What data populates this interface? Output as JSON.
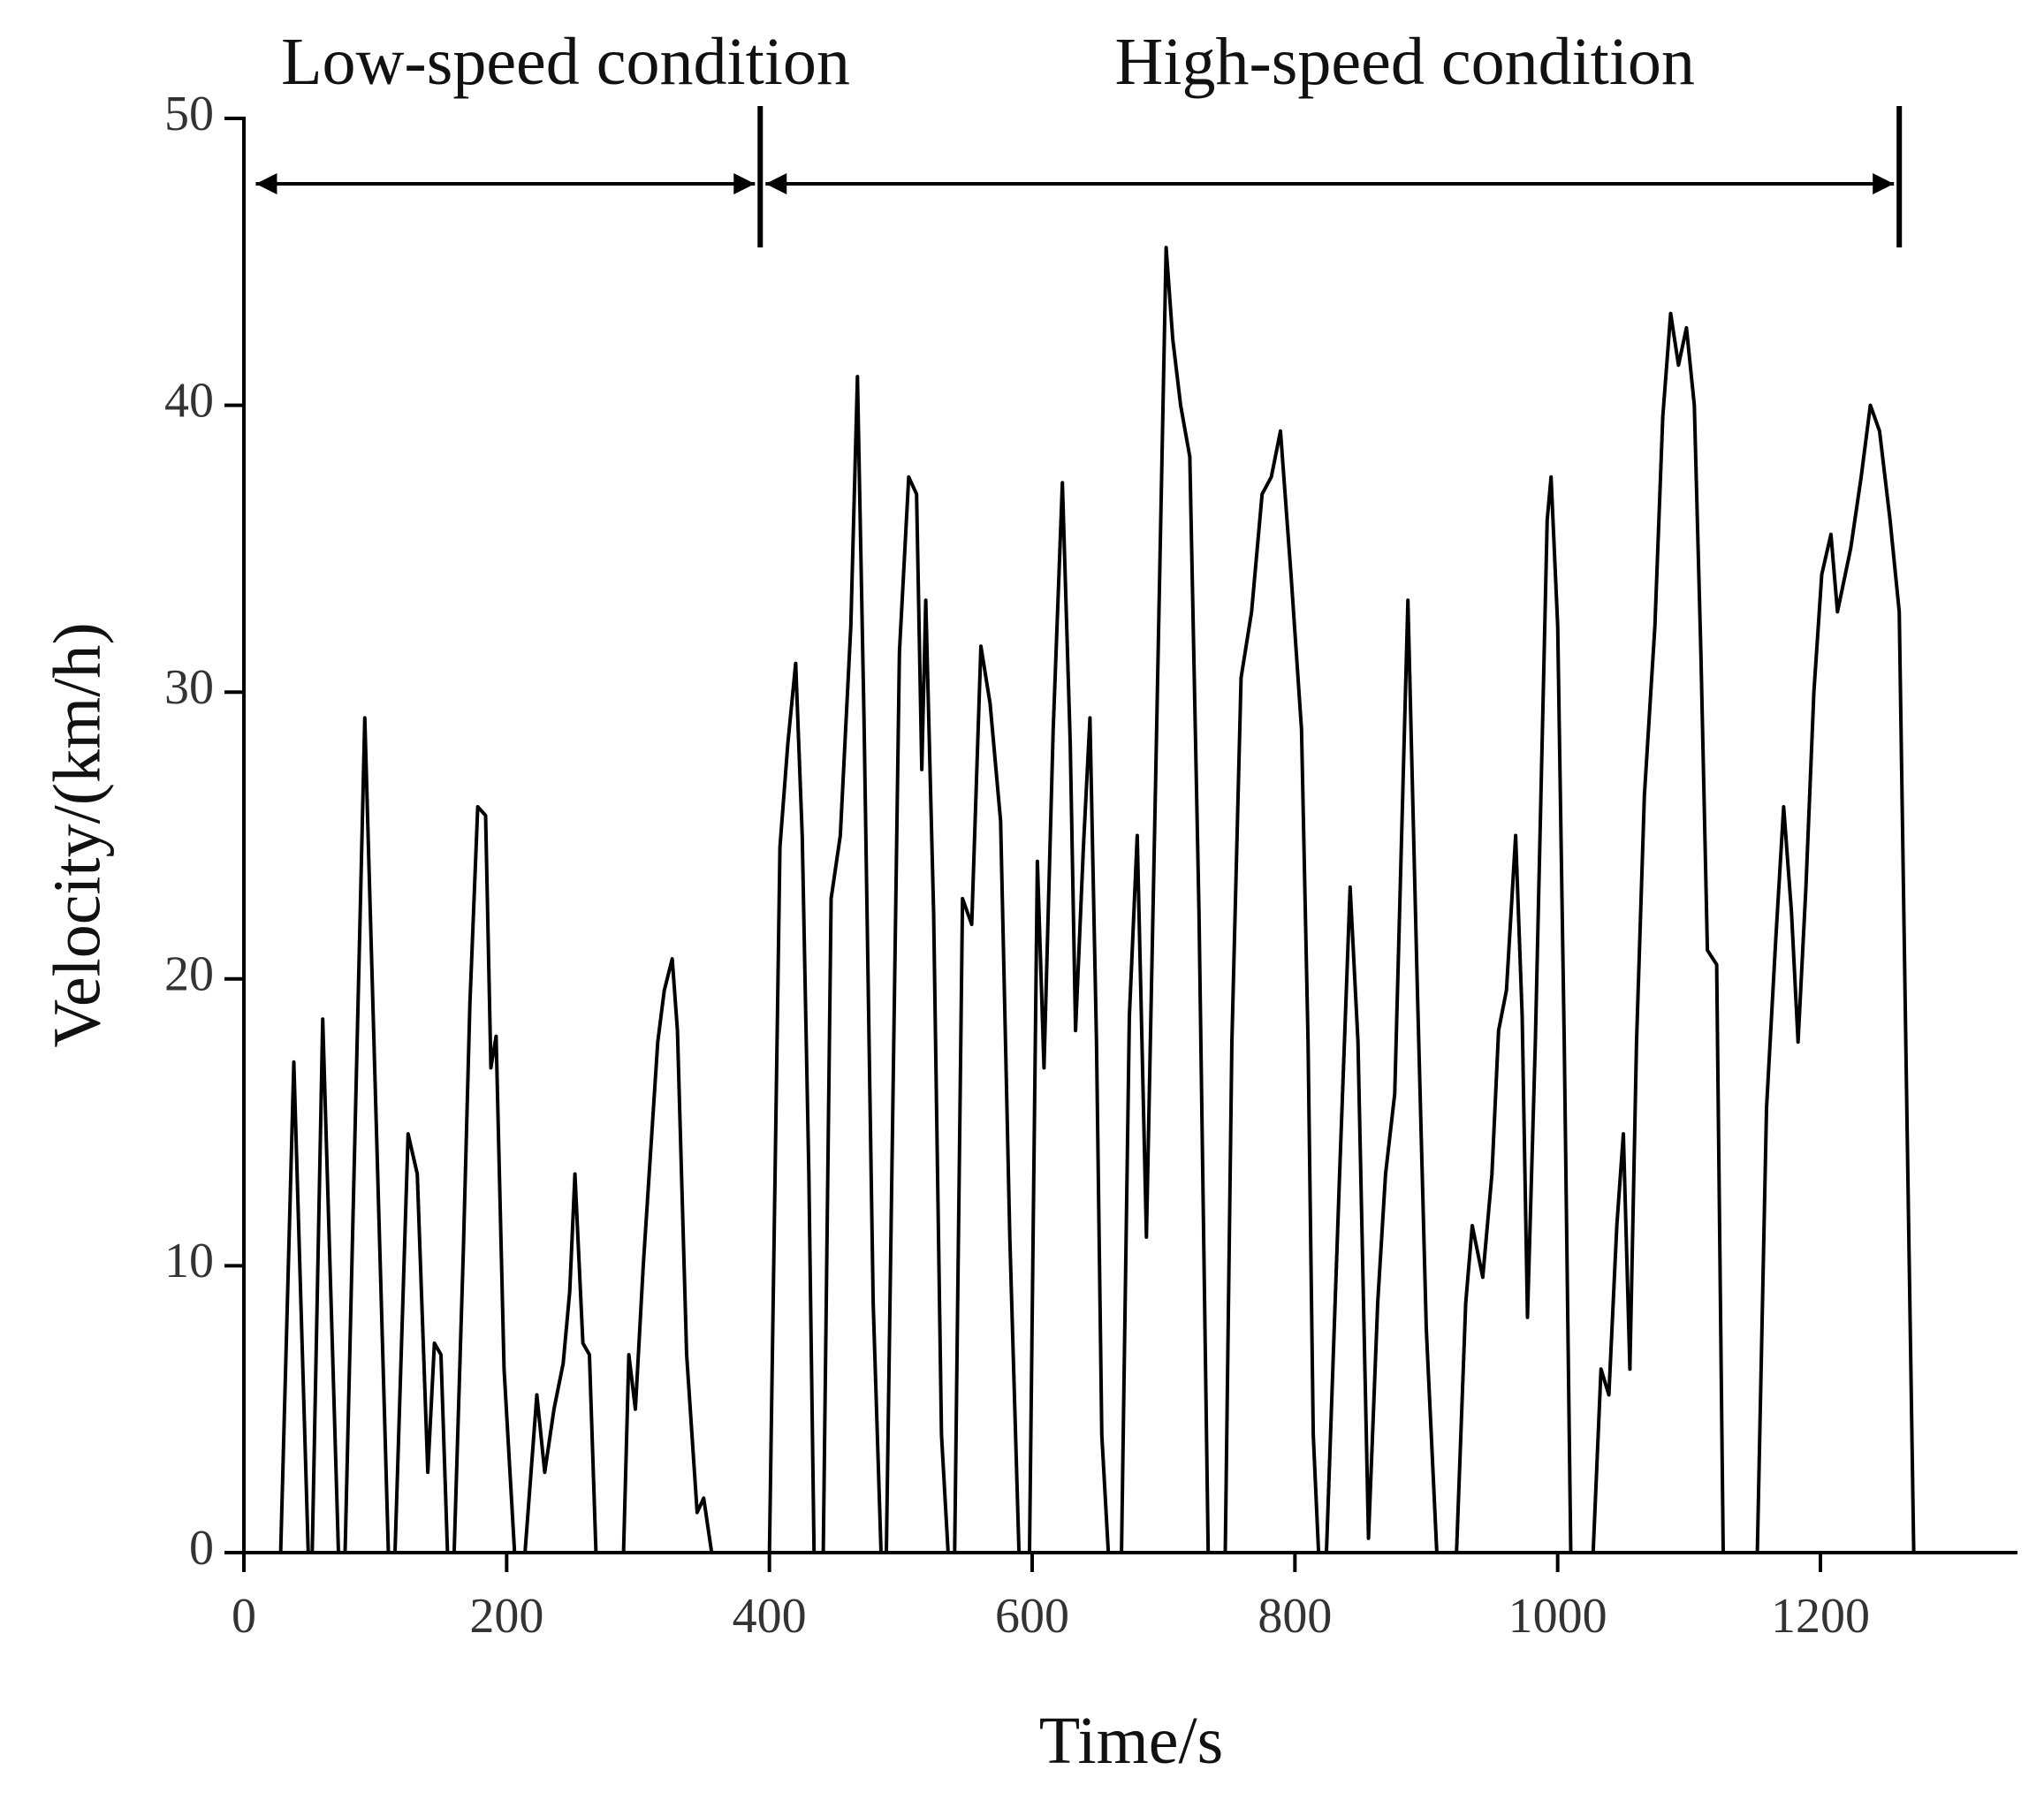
{
  "chart_data": {
    "type": "line",
    "xlabel": "Time/s",
    "ylabel": "Velocity/(km/h)",
    "annotations": [
      {
        "text": "Low-speed condition",
        "x_range": [
          5,
          393
        ]
      },
      {
        "text": "High-speed condition",
        "x_range": [
          393,
          1260
        ]
      }
    ],
    "xlim": [
      0,
      1350
    ],
    "xticks": [
      0,
      200,
      400,
      600,
      800,
      1000,
      1200
    ],
    "ylim": [
      0,
      50
    ],
    "yticks": [
      0,
      10,
      20,
      30,
      40,
      50
    ],
    "grid": false,
    "x": [
      0,
      28,
      38,
      49,
      52,
      60,
      72,
      77,
      92,
      110,
      115,
      125,
      132,
      140,
      145,
      150,
      155,
      160,
      167,
      172,
      178,
      184,
      188,
      192,
      198,
      206,
      214,
      223,
      229,
      236,
      243,
      248,
      252,
      258,
      263,
      268,
      289,
      293,
      298,
      304,
      315,
      320,
      326,
      330,
      337,
      345,
      350,
      356,
      400,
      408,
      414,
      420,
      425,
      430,
      434,
      441,
      447,
      454,
      462,
      467,
      472,
      479,
      485,
      489,
      499,
      506,
      512,
      516,
      519,
      525,
      531,
      536,
      541,
      547,
      554,
      561,
      568,
      576,
      583,
      590,
      598,
      604,
      609,
      616,
      623,
      629,
      633,
      639,
      644,
      649,
      653,
      658,
      668,
      674,
      680,
      687,
      694,
      702,
      707,
      713,
      720,
      727,
      734,
      747,
      752,
      759,
      767,
      775,
      782,
      789,
      797,
      805,
      810,
      814,
      818,
      824,
      834,
      842,
      848,
      856,
      863,
      869,
      876,
      886,
      893,
      900,
      908,
      923,
      930,
      935,
      943,
      950,
      955,
      961,
      968,
      973,
      977,
      983,
      992,
      995,
      1000,
      1005,
      1010,
      1027,
      1033,
      1039,
      1045,
      1050,
      1055,
      1060,
      1066,
      1074,
      1080,
      1086,
      1092,
      1098,
      1104,
      1109,
      1114,
      1121,
      1126,
      1152,
      1159,
      1166,
      1172,
      1178,
      1183,
      1189,
      1195,
      1201,
      1208,
      1213,
      1223,
      1231,
      1238,
      1245,
      1253,
      1260,
      1265,
      1271
    ],
    "series": [
      {
        "name": "Velocity",
        "color": "#000000",
        "values": [
          0,
          0,
          17.1,
          0,
          0,
          18.6,
          0,
          0,
          29.1,
          0,
          0,
          14.6,
          13.2,
          2.8,
          7.3,
          6.9,
          0,
          0,
          10.5,
          19.1,
          26,
          25.7,
          16.9,
          18,
          6.4,
          0,
          0,
          5.5,
          2.8,
          5,
          6.6,
          9.1,
          13.2,
          7.3,
          6.9,
          0,
          0,
          6.9,
          5,
          10,
          17.8,
          19.6,
          20.7,
          18.2,
          6.9,
          1.4,
          1.9,
          0,
          0,
          24.6,
          28.2,
          31,
          25,
          13.2,
          0,
          0,
          22.8,
          25,
          32.3,
          41,
          29.1,
          8.7,
          0,
          0,
          31.4,
          37.5,
          36.9,
          27.3,
          33.2,
          22.3,
          4.1,
          0,
          0,
          22.8,
          21.9,
          31.6,
          29.6,
          25.5,
          11,
          0,
          0,
          24.1,
          16.9,
          28.7,
          37.3,
          28.2,
          18.2,
          24.6,
          29.1,
          17.8,
          4.1,
          0,
          0,
          18.7,
          25,
          11,
          26.9,
          45.5,
          42.3,
          40,
          38.2,
          22.3,
          0,
          0,
          17.8,
          30.5,
          32.8,
          36.9,
          37.5,
          39.1,
          34.1,
          28.7,
          17.8,
          4.1,
          0,
          0,
          13.2,
          23.2,
          17.8,
          0.5,
          8.7,
          13.2,
          16,
          33.2,
          20,
          7.8,
          0,
          0,
          8.7,
          11.4,
          9.6,
          13.2,
          18.2,
          19.6,
          25,
          18.7,
          8.2,
          17.8,
          36,
          37.5,
          32.3,
          17.8,
          0,
          0,
          6.4,
          5.5,
          11.4,
          14.6,
          6.4,
          17.8,
          26.4,
          32.3,
          39.6,
          43.2,
          41.4,
          42.7,
          40,
          31.4,
          21,
          20.5,
          0,
          0,
          15.5,
          21.4,
          26,
          22.3,
          17.8,
          23.2,
          30,
          34.1,
          35.5,
          32.8,
          35,
          37.5,
          40,
          39.1,
          36,
          32.8,
          17.8,
          0
        ]
      }
    ]
  }
}
